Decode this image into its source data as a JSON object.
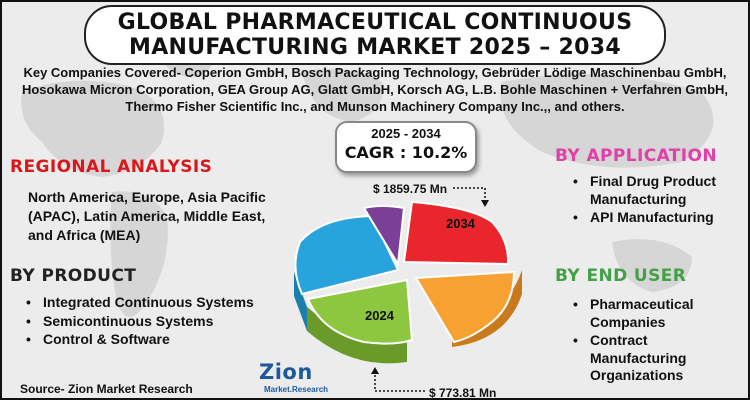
{
  "title": {
    "line1": "GLOBAL PHARMACEUTICAL CONTINUOUS",
    "line2": "MANUFACTURING MARKET 2025 – 2034"
  },
  "companies": "Key Companies Covered- Coperion GmbH, Bosch Packaging Technology, Gebrüder Lödige Maschinenbau GmbH, Hosokawa Micron Corporation, GEA Group AG, Glatt GmbH, Korsch AG, L.B. Bohle Maschinen + Verfahren GmbH, Thermo Fisher Scientific Inc., and Munson Machinery Company Inc.,, and others.",
  "cagr": {
    "years": "2025 - 2034",
    "value": "CAGR : 10.2%"
  },
  "regional": {
    "heading": "REGIONAL ANALYSIS",
    "text": "North America, Europe, Asia Pacific (APAC), Latin America, Middle East, and Africa (MEA)"
  },
  "product": {
    "heading": "BY PRODUCT",
    "items": [
      "Integrated Continuous Systems",
      "Semicontinuous Systems",
      "Control & Software"
    ]
  },
  "application": {
    "heading": "BY APPLICATION",
    "items": [
      "Final Drug Product Manufacturing",
      "API Manufacturing"
    ]
  },
  "end_user": {
    "heading": "BY END USER",
    "items": [
      "Pharmaceutical Companies",
      "Contract Manufacturing Organizations"
    ]
  },
  "market": {
    "value_2034": "$ 1859.75 Mn",
    "value_2024": "$ 773.81 Mn",
    "label_2034": "2034",
    "label_2024": "2024"
  },
  "source": "Source- Zion Market Research",
  "logo": {
    "word": "Zion",
    "sub": "Market.Research"
  },
  "colors": {
    "red_slice": "#e8262c",
    "orange_slice": "#f7a133",
    "green_slice": "#8dc63f",
    "blue_slice": "#29a3dc",
    "purple_slice": "#7b3f98",
    "regional_heading": "#d7191c",
    "application_heading": "#e040a8",
    "end_user_heading": "#43a047"
  }
}
